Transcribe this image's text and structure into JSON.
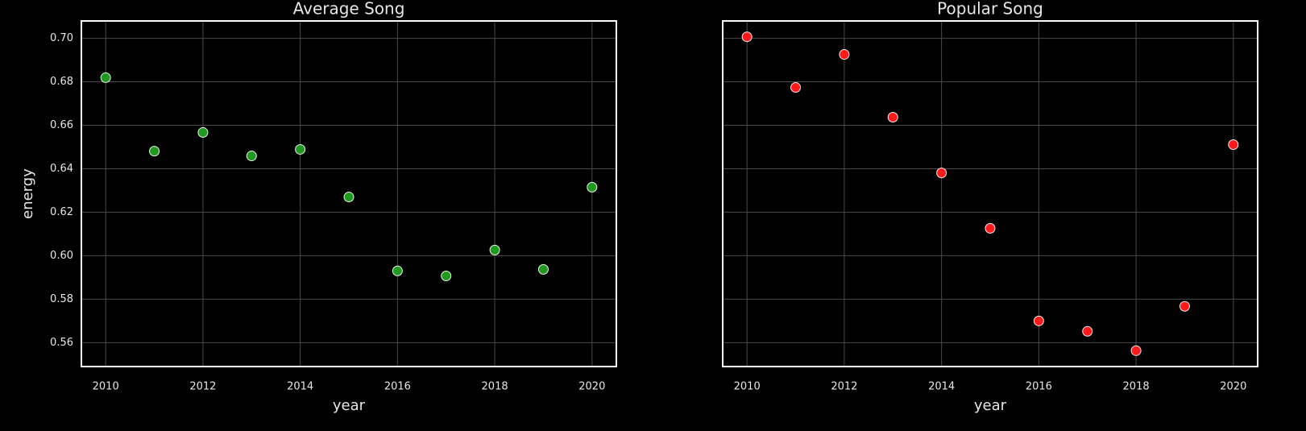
{
  "chart_data": [
    {
      "type": "scatter",
      "title": "Average Song",
      "xlabel": "year",
      "ylabel": "energy",
      "x": [
        2010,
        2011,
        2012,
        2013,
        2014,
        2015,
        2016,
        2017,
        2018,
        2019,
        2020
      ],
      "values": [
        0.6819,
        0.6481,
        0.6567,
        0.6459,
        0.6489,
        0.627,
        0.593,
        0.5907,
        0.6026,
        0.5937,
        0.6315
      ],
      "color": "#1e9a1e",
      "xlim": [
        2009.5,
        2020.5
      ],
      "ylim": [
        0.549,
        0.708
      ],
      "xticks": [
        2010,
        2012,
        2014,
        2016,
        2018,
        2020
      ],
      "yticks": [
        {
          "value": 0.56,
          "label": "0.56"
        },
        {
          "value": 0.58,
          "label": "0.58"
        },
        {
          "value": 0.6,
          "label": "0.60"
        },
        {
          "value": 0.62,
          "label": "0.62"
        },
        {
          "value": 0.64,
          "label": "0.64"
        },
        {
          "value": 0.66,
          "label": "0.66"
        },
        {
          "value": 0.68,
          "label": "0.68"
        },
        {
          "value": 0.7,
          "label": "0.70"
        }
      ],
      "grid": true
    },
    {
      "type": "scatter",
      "title": "Popular Song",
      "xlabel": "year",
      "x": [
        2010,
        2011,
        2012,
        2013,
        2014,
        2015,
        2016,
        2017,
        2018,
        2019,
        2020
      ],
      "values": [
        0.7007,
        0.6774,
        0.6926,
        0.6637,
        0.6381,
        0.6126,
        0.57,
        0.5652,
        0.5563,
        0.5767,
        0.6511
      ],
      "color": "#ff1a1a",
      "xlim": [
        2009.5,
        2020.5
      ],
      "ylim": [
        0.549,
        0.708
      ],
      "xticks": [
        2010,
        2012,
        2014,
        2016,
        2018,
        2020
      ],
      "yticks": [
        0.56,
        0.58,
        0.6,
        0.62,
        0.64,
        0.66,
        0.68,
        0.7
      ],
      "grid": true
    }
  ]
}
